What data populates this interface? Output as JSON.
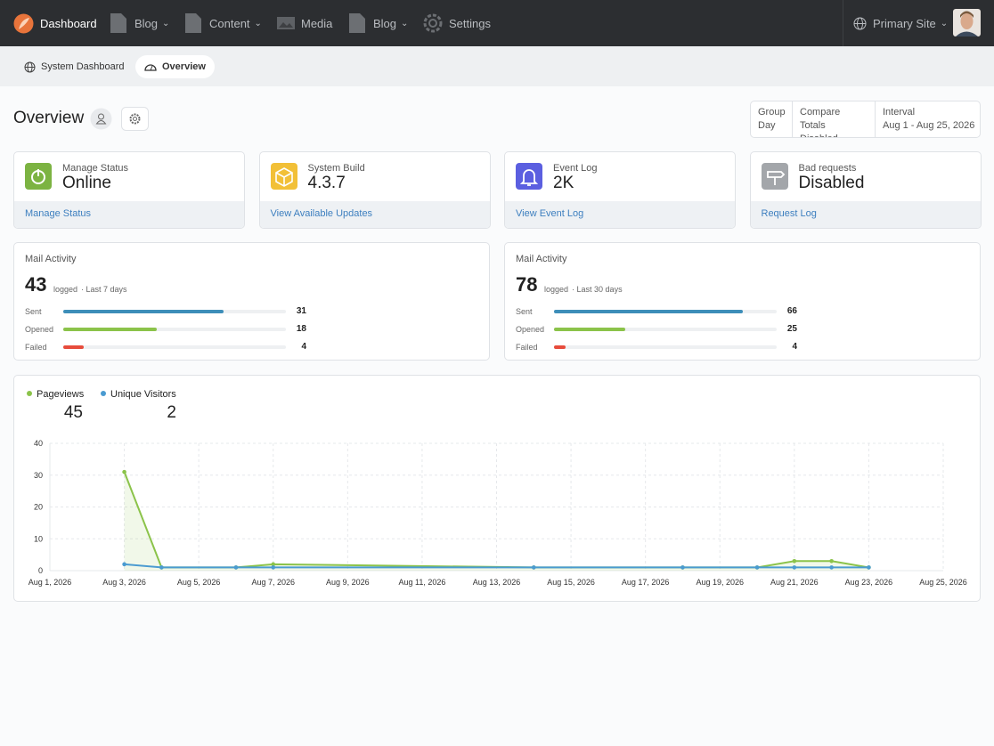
{
  "nav": {
    "items": [
      "Dashboard",
      "Blog",
      "Content",
      "Media",
      "Blog",
      "Settings"
    ],
    "site": "Primary Site"
  },
  "breadcrumbs": [
    "System Dashboard",
    "Overview"
  ],
  "header": {
    "title": "Overview",
    "filters": [
      {
        "label": "Group",
        "value": "Day"
      },
      {
        "label": "Compare Totals",
        "value": "Disabled"
      },
      {
        "label": "Interval",
        "value": "Aug 1 - Aug 25, 2026"
      }
    ]
  },
  "cards": [
    {
      "label": "Manage Status",
      "value": "Online",
      "link": "Manage Status",
      "icon_color": "#7cb342"
    },
    {
      "label": "System Build",
      "value": "4.3.7",
      "link": "View Available Updates",
      "icon_color": "#f2c037"
    },
    {
      "label": "Event Log",
      "value": "2K",
      "link": "View Event Log",
      "icon_color": "#5b5fe0"
    },
    {
      "label": "Bad requests",
      "value": "Disabled",
      "link": "Request Log",
      "icon_color": "#a3a6aa"
    }
  ],
  "mail": [
    {
      "title": "Mail Activity",
      "total": 43,
      "unit": "logged",
      "period": "· Last 7 days",
      "rows": [
        {
          "label": "Sent",
          "value": 31,
          "color": "#3d8eb9"
        },
        {
          "label": "Opened",
          "value": 18,
          "color": "#8bc34a"
        },
        {
          "label": "Failed",
          "value": 4,
          "color": "#e74c3c"
        }
      ]
    },
    {
      "title": "Mail Activity",
      "total": 78,
      "unit": "logged",
      "period": "· Last 30 days",
      "rows": [
        {
          "label": "Sent",
          "value": 66,
          "color": "#3d8eb9"
        },
        {
          "label": "Opened",
          "value": 25,
          "color": "#8bc34a"
        },
        {
          "label": "Failed",
          "value": 4,
          "color": "#e74c3c"
        }
      ]
    }
  ],
  "chart_data": {
    "type": "line",
    "x": [
      "Aug 3, 2026",
      "Aug 4, 2026",
      "Aug 6, 2026",
      "Aug 7, 2026",
      "Aug 14, 2026",
      "Aug 18, 2026",
      "Aug 20, 2026",
      "Aug 21, 2026",
      "Aug 22, 2026",
      "Aug 23, 2026"
    ],
    "series": [
      {
        "name": "Pageviews",
        "total": 45,
        "color": "#8bc34a",
        "values": [
          31,
          1,
          1,
          2,
          1,
          1,
          1,
          3,
          3,
          1
        ]
      },
      {
        "name": "Unique Visitors",
        "total": 2,
        "color": "#4a9bd1",
        "values": [
          2,
          1,
          1,
          1,
          1,
          1,
          1,
          1,
          1,
          1
        ]
      }
    ],
    "xlim": [
      "Aug 1, 2026",
      "Aug 25, 2026"
    ],
    "xticks": [
      "Aug 1, 2026",
      "Aug 3, 2026",
      "Aug 5, 2026",
      "Aug 7, 2026",
      "Aug 9, 2026",
      "Aug 11, 2026",
      "Aug 13, 2026",
      "Aug 15, 2026",
      "Aug 17, 2026",
      "Aug 19, 2026",
      "Aug 21, 2026",
      "Aug 23, 2026",
      "Aug 25, 2026"
    ],
    "ylim": [
      0,
      40
    ],
    "yticks": [
      0,
      10,
      20,
      30,
      40
    ],
    "grid": true
  }
}
